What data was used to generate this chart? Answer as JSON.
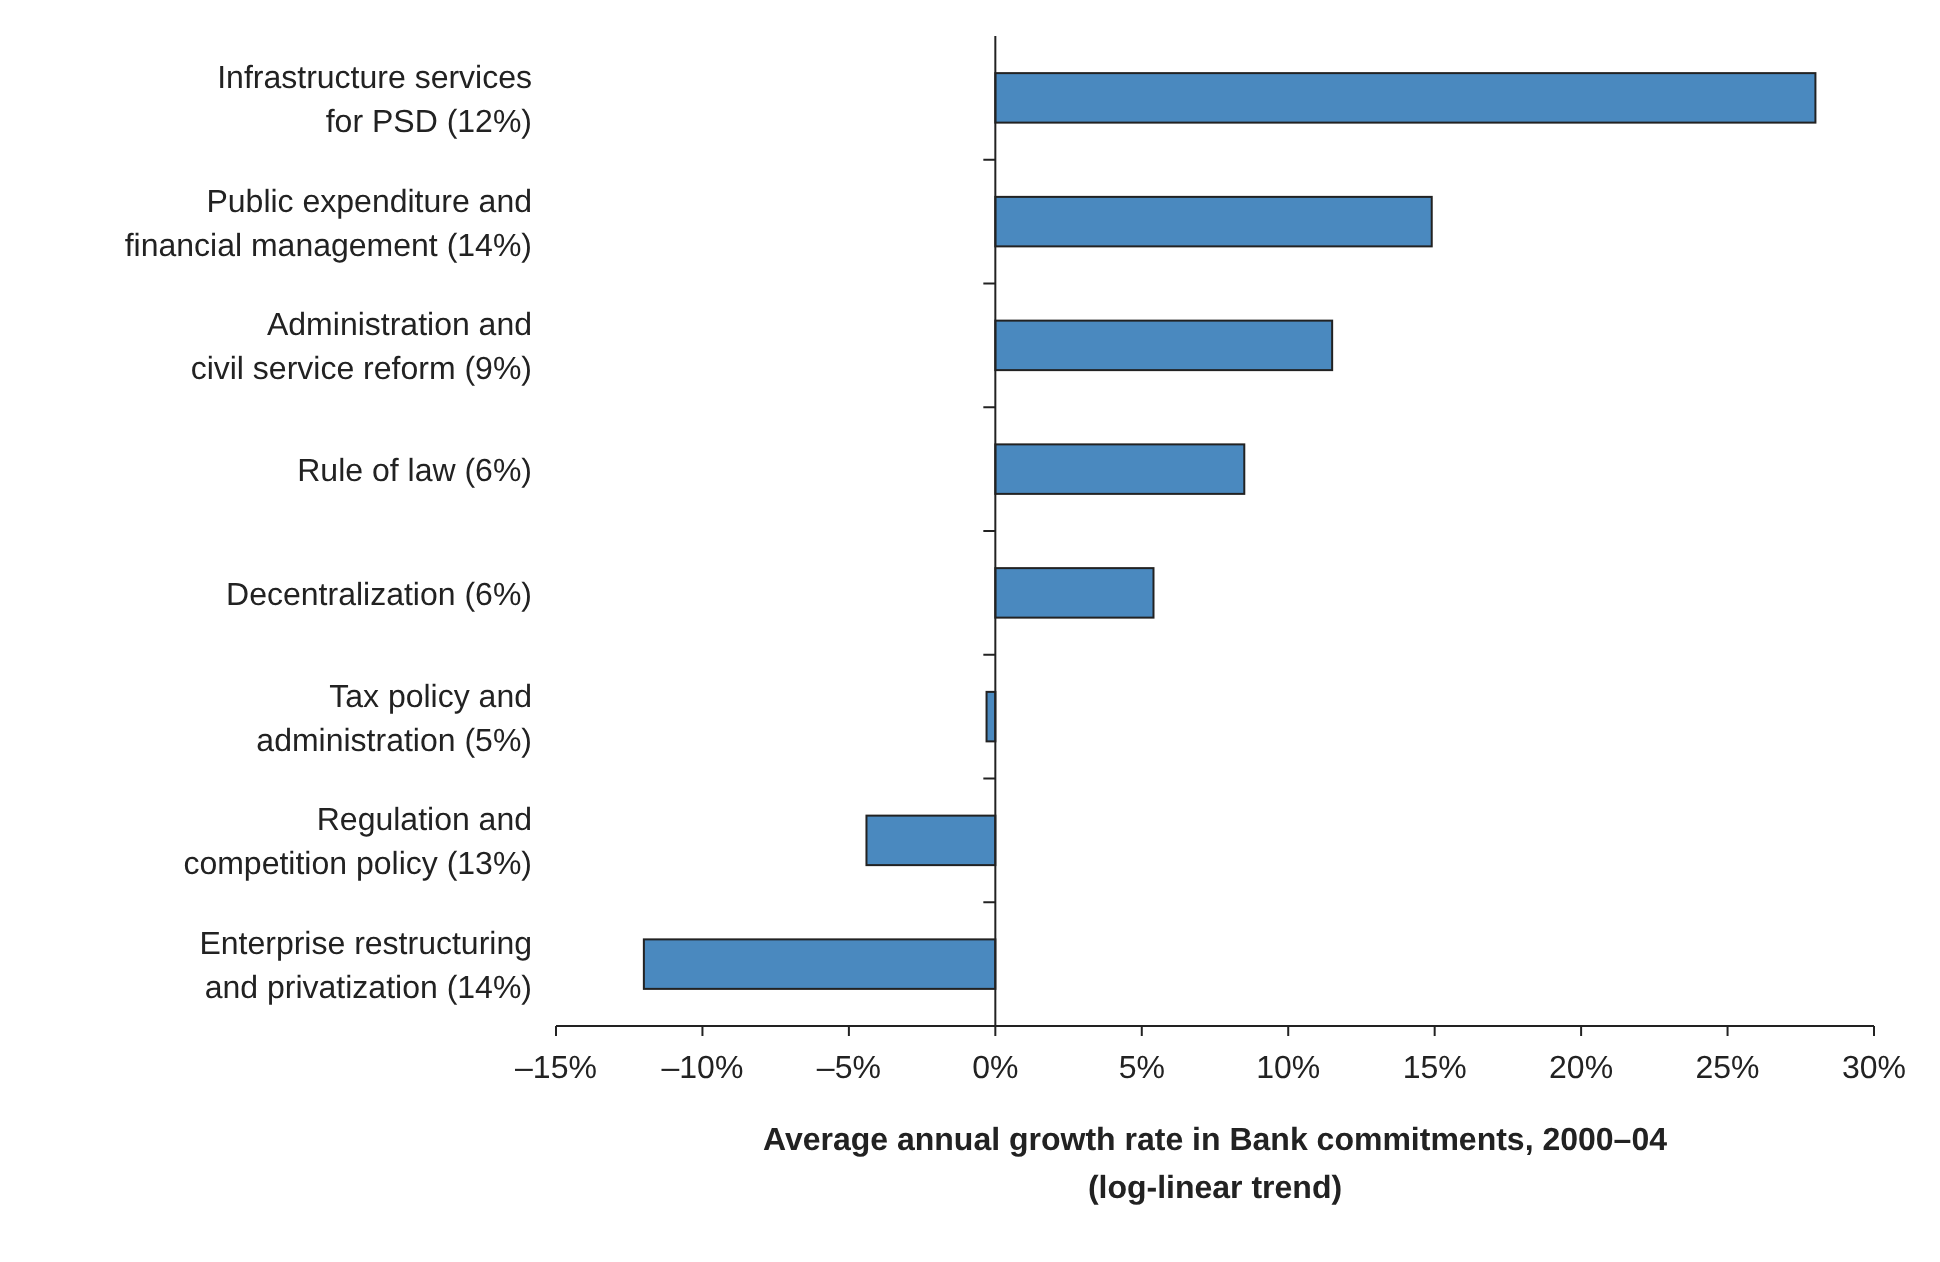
{
  "chart_data": {
    "type": "bar",
    "orientation": "horizontal",
    "categories": [
      "Infrastructure services\nfor PSD (12%)",
      "Public expenditure and\nfinancial management (14%)",
      "Administration and\ncivil service reform (9%)",
      "Rule of law (6%)",
      "Decentralization (6%)",
      "Tax policy and\nadministration (5%)",
      "Regulation and\ncompetition policy (13%)",
      "Enterprise restructuring\nand privatization (14%)"
    ],
    "values": [
      28,
      14.9,
      11.5,
      8.5,
      5.4,
      -0.3,
      -4.4,
      -12
    ],
    "color": "#4a89bf",
    "xlim": [
      -15,
      30
    ],
    "xticks": [
      {
        "value": -15,
        "label": "–15%"
      },
      {
        "value": -10,
        "label": "–10%"
      },
      {
        "value": -5,
        "label": "–5%"
      },
      {
        "value": 0,
        "label": "0%"
      },
      {
        "value": 5,
        "label": "5%"
      },
      {
        "value": 10,
        "label": "10%"
      },
      {
        "value": 15,
        "label": "15%"
      },
      {
        "value": 20,
        "label": "20%"
      },
      {
        "value": 25,
        "label": "25%"
      },
      {
        "value": 30,
        "label": "30%"
      }
    ],
    "xlabel": "Average annual growth rate in Bank commitments, 2000–04\n(log-linear trend)",
    "data_labels": false
  }
}
